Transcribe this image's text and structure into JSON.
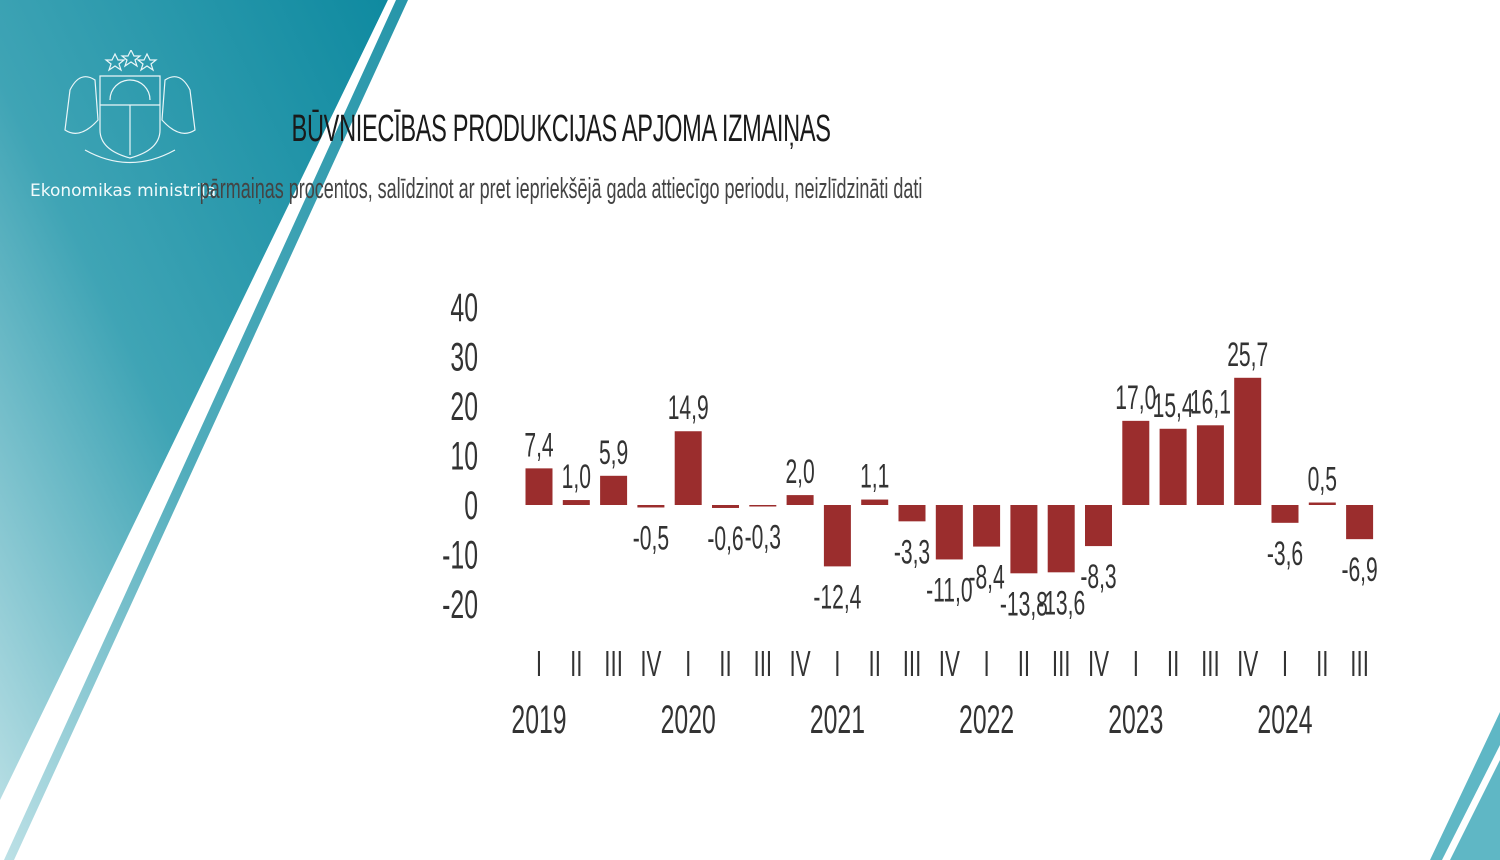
{
  "brand": {
    "ministry": "Ekonomikas ministrija",
    "logo": "Latvian coat of arms",
    "accent": "#1a8fa3"
  },
  "chart_data": {
    "type": "bar",
    "title": "BŪVNIECĪBAS PRODUKCIJAS APJOMA IZMAIŅAS",
    "subtitle": "pārmaiņas procentos, salīdzinot ar pret iepriekšējā gada attiecīgo periodu, neizlīdzināti dati",
    "categories": [
      "I",
      "II",
      "III",
      "IV",
      "I",
      "II",
      "III",
      "IV",
      "I",
      "II",
      "III",
      "IV",
      "I",
      "II",
      "III",
      "IV",
      "I",
      "II",
      "III",
      "IV",
      "I",
      "II",
      "III"
    ],
    "years": [
      {
        "label": "2019",
        "quarters": 4
      },
      {
        "label": "2020",
        "quarters": 4
      },
      {
        "label": "2021",
        "quarters": 4
      },
      {
        "label": "2022",
        "quarters": 4
      },
      {
        "label": "2023",
        "quarters": 4
      },
      {
        "label": "2024",
        "quarters": 3
      }
    ],
    "values": [
      7.4,
      1.0,
      5.9,
      -0.5,
      14.9,
      -0.6,
      -0.3,
      2.0,
      -12.4,
      1.1,
      -3.3,
      -11.0,
      -8.4,
      -13.8,
      -13.6,
      -8.3,
      17.0,
      15.4,
      16.1,
      25.7,
      -3.6,
      0.5,
      -6.9
    ],
    "data_labels": [
      "7,4",
      "1,0",
      "5,9",
      "-0,5",
      "14,9",
      "-0,6",
      "-0,3",
      "2,0",
      "-12,4",
      "1,1",
      "-3,3",
      "-11,0",
      "-8,4",
      "-13,8",
      "-13,6",
      "-8,3",
      "17,0",
      "15,4",
      "16,1",
      "25,7",
      "-3,6",
      "0,5",
      "-6,9"
    ],
    "yticks": [
      "40",
      "30",
      "20",
      "10",
      "0",
      "-10",
      "-20"
    ],
    "ylim": [
      -20,
      40
    ],
    "grid": false,
    "bar_color": "#9b2d2d",
    "xlabel": "",
    "ylabel": ""
  }
}
